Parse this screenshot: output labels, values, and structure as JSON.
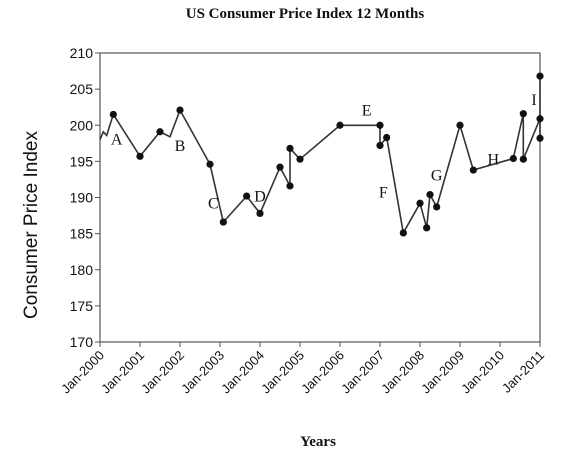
{
  "chart_data": {
    "type": "line",
    "title": "US Consumer Price Index 12 Months",
    "xlabel": "Years",
    "ylabel": "Consumer Price Index",
    "ylim": [
      170,
      210
    ],
    "xlim": [
      "2000-01",
      "2011-01"
    ],
    "grid": false,
    "y_ticks": [
      210,
      205,
      200,
      195,
      190,
      185,
      180,
      175,
      170
    ],
    "x_ticks": [
      {
        "date": "2000-01",
        "label": "Jan-2000"
      },
      {
        "date": "2001-01",
        "label": "Jan-2001"
      },
      {
        "date": "2002-01",
        "label": "Jan-2002"
      },
      {
        "date": "2003-01",
        "label": "Jan-2003"
      },
      {
        "date": "2004-01",
        "label": "Jan-2004"
      },
      {
        "date": "2005-01",
        "label": "Jan-2005"
      },
      {
        "date": "2006-01",
        "label": "Jan-2006"
      },
      {
        "date": "2007-01",
        "label": "Jan-2007"
      },
      {
        "date": "2008-01",
        "label": "Jan-2008"
      },
      {
        "date": "2009-01",
        "label": "Jan-2009"
      },
      {
        "date": "2010-01",
        "label": "Jan-2010"
      },
      {
        "date": "2011-01",
        "label": "Jan-2011"
      }
    ],
    "series": [
      {
        "points": [
          {
            "x": "2000-01",
            "y": 198.0,
            "marker": false
          },
          {
            "x": "2000-02",
            "y": 199.1,
            "marker": false
          },
          {
            "x": "2000-03",
            "y": 198.6,
            "marker": false
          },
          {
            "x": "2000-05",
            "y": 201.5,
            "marker": true
          },
          {
            "x": "2001-01",
            "y": 195.7,
            "marker": true
          },
          {
            "x": "2001-07",
            "y": 199.1,
            "marker": true
          },
          {
            "x": "2001-10",
            "y": 198.4,
            "marker": false
          },
          {
            "x": "2002-01",
            "y": 202.1,
            "marker": true
          },
          {
            "x": "2002-10",
            "y": 194.6,
            "marker": true
          },
          {
            "x": "2003-02",
            "y": 186.6,
            "marker": true
          },
          {
            "x": "2003-09",
            "y": 190.2,
            "marker": true
          },
          {
            "x": "2004-01",
            "y": 187.8,
            "marker": true
          },
          {
            "x": "2004-07",
            "y": 194.2,
            "marker": true
          },
          {
            "x": "2004-10",
            "y": 191.6,
            "marker": true
          },
          {
            "x": "2004-10",
            "y": 196.8,
            "marker": true
          },
          {
            "x": "2005-01",
            "y": 195.3,
            "marker": true
          },
          {
            "x": "2006-01",
            "y": 200.0,
            "marker": true
          },
          {
            "x": "2007-01",
            "y": 200.0,
            "marker": true
          },
          {
            "x": "2007-01",
            "y": 197.2,
            "marker": true
          },
          {
            "x": "2007-03",
            "y": 198.3,
            "marker": true
          },
          {
            "x": "2007-08",
            "y": 185.1,
            "marker": true
          },
          {
            "x": "2008-01",
            "y": 189.2,
            "marker": true
          },
          {
            "x": "2008-03",
            "y": 185.8,
            "marker": true
          },
          {
            "x": "2008-04",
            "y": 190.4,
            "marker": true
          },
          {
            "x": "2008-06",
            "y": 188.7,
            "marker": true
          },
          {
            "x": "2009-01",
            "y": 200.0,
            "marker": true
          },
          {
            "x": "2009-05",
            "y": 193.8,
            "marker": true
          },
          {
            "x": "2010-05",
            "y": 195.4,
            "marker": true
          },
          {
            "x": "2010-08",
            "y": 201.6,
            "marker": true
          },
          {
            "x": "2010-08",
            "y": 195.3,
            "marker": true
          },
          {
            "x": "2011-01",
            "y": 200.9,
            "marker": true
          },
          {
            "x": "2011-06",
            "y": 206.8,
            "marker": true
          },
          {
            "x": "2011-08",
            "y": 198.2,
            "marker": true
          }
        ]
      }
    ],
    "annotations": [
      {
        "text": "A",
        "x": "2000-06",
        "y": 198.2
      },
      {
        "text": "B",
        "x": "2002-01",
        "y": 197.3
      },
      {
        "text": "C",
        "x": "2002-11",
        "y": 189.3
      },
      {
        "text": "D",
        "x": "2004-01",
        "y": 190.3
      },
      {
        "text": "E",
        "x": "2006-09",
        "y": 202.2
      },
      {
        "text": "F",
        "x": "2007-02",
        "y": 190.8
      },
      {
        "text": "G",
        "x": "2008-06",
        "y": 193.2
      },
      {
        "text": "H",
        "x": "2009-11",
        "y": 195.4
      },
      {
        "text": "I",
        "x": "2011-03",
        "y": 203.6
      }
    ]
  }
}
